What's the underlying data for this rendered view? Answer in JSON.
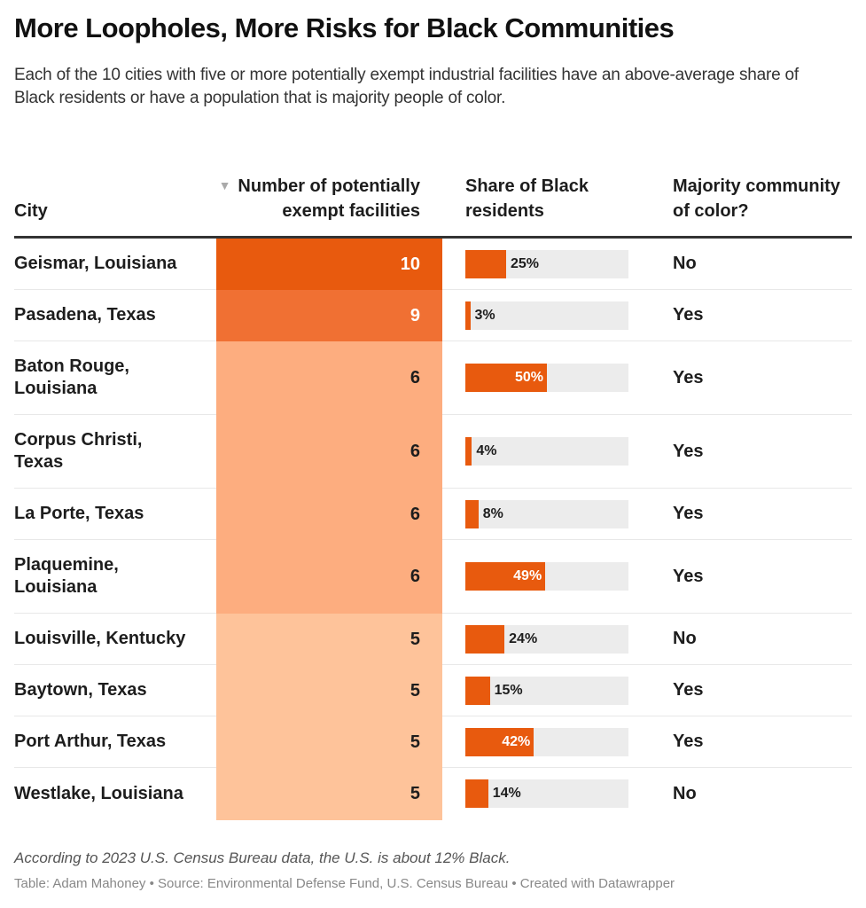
{
  "title": "More Loopholes, More Risks for Black Communities",
  "subtitle": "Each of the 10 cities with five or more potentially exempt industrial facilities have an above-average share of Black residents or have a population that is majority people of color.",
  "columns": {
    "city": "City",
    "number": "Number of potentially exempt facilities",
    "share": "Share of Black residents",
    "majority": "Majority community of color?",
    "sort_icon": "sort-descending-triangle"
  },
  "colors": {
    "bar_fill": "#e85a0e",
    "bar_track": "#ececec",
    "heat_10": "#e85a0e",
    "heat_9": "#f07033",
    "heat_6": "#fdad7f",
    "heat_5": "#fec39a"
  },
  "chart_data": {
    "type": "table",
    "title": "More Loopholes, More Risks for Black Communities",
    "columns": [
      "City",
      "Number of potentially exempt facilities",
      "Share of Black residents",
      "Majority community of color?"
    ],
    "share_range": [
      0,
      100
    ],
    "rows": [
      {
        "city": "Geismar, Louisiana",
        "facilities": 10,
        "share_black": 25,
        "share_label": "25%",
        "majority_poc": "No"
      },
      {
        "city": "Pasadena, Texas",
        "facilities": 9,
        "share_black": 3,
        "share_label": "3%",
        "majority_poc": "Yes"
      },
      {
        "city": "Baton Rouge, Louisiana",
        "facilities": 6,
        "share_black": 50,
        "share_label": "50%",
        "majority_poc": "Yes"
      },
      {
        "city": "Corpus Christi, Texas",
        "facilities": 6,
        "share_black": 4,
        "share_label": "4%",
        "majority_poc": "Yes"
      },
      {
        "city": "La Porte, Texas",
        "facilities": 6,
        "share_black": 8,
        "share_label": "8%",
        "majority_poc": "Yes"
      },
      {
        "city": "Plaquemine, Louisiana",
        "facilities": 6,
        "share_black": 49,
        "share_label": "49%",
        "majority_poc": "Yes"
      },
      {
        "city": "Louisville, Kentucky",
        "facilities": 5,
        "share_black": 24,
        "share_label": "24%",
        "majority_poc": "No"
      },
      {
        "city": "Baytown, Texas",
        "facilities": 5,
        "share_black": 15,
        "share_label": "15%",
        "majority_poc": "Yes"
      },
      {
        "city": "Port Arthur, Texas",
        "facilities": 5,
        "share_black": 42,
        "share_label": "42%",
        "majority_poc": "Yes"
      },
      {
        "city": "Westlake, Louisiana",
        "facilities": 5,
        "share_black": 14,
        "share_label": "14%",
        "majority_poc": "No"
      }
    ]
  },
  "notes": "According to 2023 U.S. Census Bureau data, the U.S. is about 12% Black.",
  "source": "Table: Adam Mahoney • Source: Environmental Defense Fund, U.S. Census Bureau • Created with Datawrapper"
}
